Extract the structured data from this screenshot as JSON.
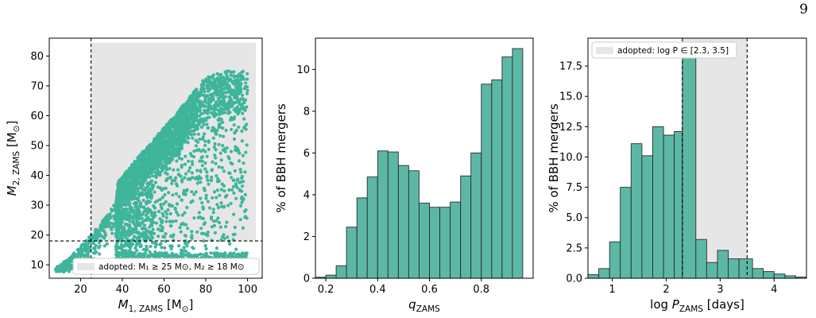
{
  "page_number": "9",
  "colors": {
    "bar_fill": "#5cb8a5",
    "bar_edge": "#2c2c2c",
    "scatter": "#3fb59b",
    "shade": "#e6e6e6"
  },
  "chart_data": [
    {
      "type": "scatter",
      "xlabel_main": "M",
      "xlabel_sub": "1, ZAMS",
      "xlabel_unit": "[M",
      "xlabel_unit_sub": "⊙",
      "xlabel_close": "]",
      "ylabel_main": "M",
      "ylabel_sub": "2, ZAMS",
      "ylabel_unit": "[M",
      "ylabel_unit_sub": "⊙",
      "ylabel_close": "]",
      "xlim": [
        5,
        107
      ],
      "ylim": [
        5.5,
        86
      ],
      "xticks": [
        20,
        40,
        60,
        80,
        100
      ],
      "xtick_labels": [
        "20",
        "40",
        "60",
        "80",
        "100"
      ],
      "yticks": [
        10,
        20,
        30,
        40,
        50,
        60,
        70,
        80
      ],
      "ytick_labels": [
        "10",
        "20",
        "30",
        "40",
        "50",
        "60",
        "70",
        "80"
      ],
      "cut_lines": {
        "m1_min": 25,
        "m2_min": 18
      },
      "adopted_region": {
        "x": [
          25,
          104
        ],
        "y": [
          18,
          84.5
        ]
      },
      "legend_text": "adopted: M₁ ≥ 25 M⊙, M₂ ≥ 18 M⊙",
      "legend_position": "lower-right",
      "envelope": {
        "x": [
          8,
          15,
          25,
          32,
          37,
          38,
          45,
          55,
          65,
          72,
          80,
          90,
          100,
          100,
          90,
          80,
          70,
          60,
          50,
          42,
          38,
          37,
          30,
          22,
          15,
          10,
          8
        ],
        "y_upper": [
          9,
          12.5,
          20,
          26,
          31,
          38,
          44,
          52,
          60,
          66,
          73,
          75,
          75,
          75,
          75,
          75,
          75,
          75,
          75,
          75,
          75,
          75,
          75,
          75,
          75,
          75,
          75
        ],
        "y_lower": [
          7.5,
          9.5,
          12,
          12,
          12,
          12,
          12,
          12,
          12,
          12,
          12,
          12,
          12,
          12,
          12,
          12,
          12,
          12,
          12,
          12,
          12,
          12,
          12,
          12,
          12,
          12,
          12
        ]
      }
    },
    {
      "type": "bar",
      "xlabel_main": "q",
      "xlabel_sub": "ZAMS",
      "ylabel": "% of BBH mergers",
      "xlim": [
        0.16,
        1.0
      ],
      "ylim": [
        0,
        11.5
      ],
      "xticks": [
        0.2,
        0.4,
        0.6,
        0.8
      ],
      "xtick_labels": [
        "0.2",
        "0.4",
        "0.6",
        "0.8"
      ],
      "yticks": [
        0,
        2,
        4,
        6,
        8,
        10
      ],
      "ytick_labels": [
        "0",
        "2",
        "4",
        "6",
        "8",
        "10"
      ],
      "bin_edges": [
        0.16,
        0.2,
        0.24,
        0.28,
        0.32,
        0.36,
        0.4,
        0.44,
        0.48,
        0.52,
        0.56,
        0.6,
        0.64,
        0.68,
        0.72,
        0.76,
        0.8,
        0.84,
        0.88,
        0.92,
        0.96,
        1.0
      ],
      "values": [
        0.05,
        0.15,
        0.6,
        2.45,
        3.85,
        4.85,
        6.1,
        6.05,
        5.4,
        5.15,
        3.6,
        3.4,
        3.4,
        3.65,
        4.9,
        6.0,
        9.3,
        9.5,
        10.6,
        11.0,
        0.0
      ]
    },
    {
      "type": "bar",
      "xlabel_main": "log P",
      "xlabel_sub": "ZAMS",
      "xlabel_unit": "[days]",
      "ylabel": "% of BBH mergers",
      "xlim": [
        0.55,
        4.6
      ],
      "ylim": [
        0,
        19.8
      ],
      "xticks": [
        1,
        2,
        3,
        4
      ],
      "xtick_labels": [
        "1",
        "2",
        "3",
        "4"
      ],
      "yticks": [
        0.0,
        2.5,
        5.0,
        7.5,
        10.0,
        12.5,
        15.0,
        17.5
      ],
      "ytick_labels": [
        "0.0",
        "2.5",
        "5.0",
        "7.5",
        "10.0",
        "12.5",
        "15.0",
        "17.5"
      ],
      "adopted_region": {
        "x": [
          2.3,
          3.5
        ]
      },
      "legend_text": "adopted: log P ∈ [2.3, 3.5]",
      "legend_position": "upper-left",
      "bin_edges": [
        0.55,
        0.75,
        0.95,
        1.15,
        1.35,
        1.55,
        1.75,
        1.95,
        2.15,
        2.3,
        2.55,
        2.75,
        2.95,
        3.15,
        3.35,
        3.6,
        3.8,
        4.0,
        4.2,
        4.4,
        4.6
      ],
      "values": [
        0.3,
        0.8,
        3.0,
        7.5,
        11.1,
        10.1,
        12.5,
        11.8,
        12.1,
        18.7,
        3.2,
        1.3,
        2.3,
        1.6,
        1.6,
        0.8,
        0.55,
        0.35,
        0.2,
        0.1
      ]
    }
  ]
}
